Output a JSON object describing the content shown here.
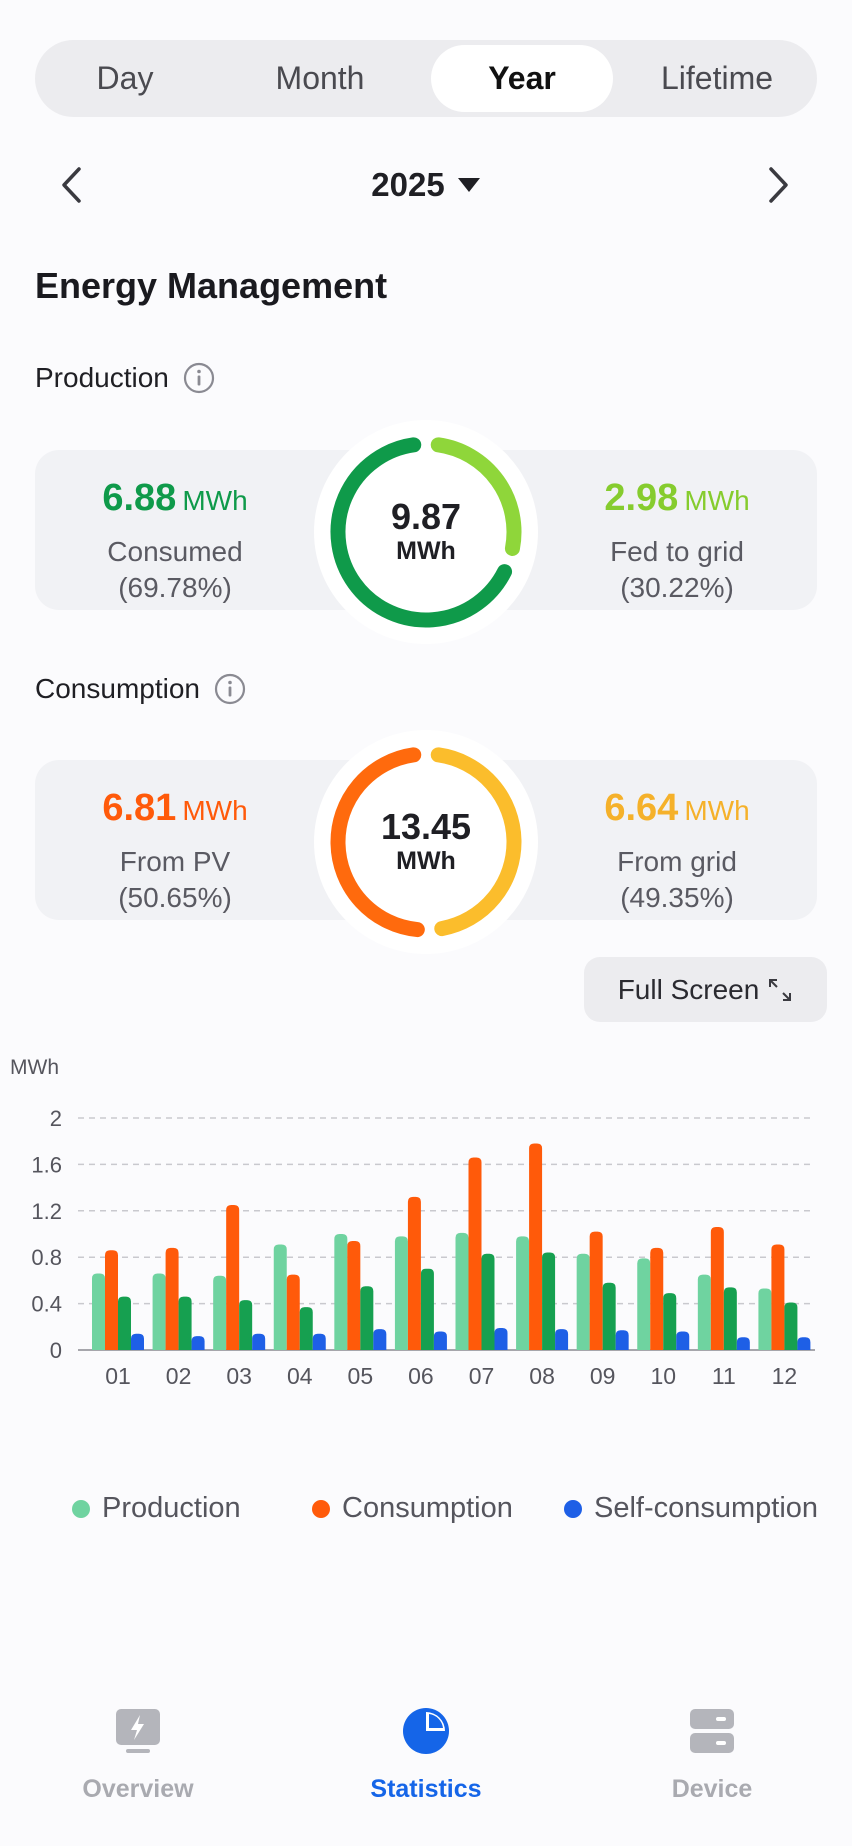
{
  "period_tabs": [
    {
      "label": "Day",
      "active": false
    },
    {
      "label": "Month",
      "active": false
    },
    {
      "label": "Year",
      "active": true
    },
    {
      "label": "Lifetime",
      "active": false
    }
  ],
  "year_nav": {
    "year": "2025",
    "prev_icon": "chevron-left-icon",
    "next_icon": "chevron-right-icon",
    "dropdown_icon": "caret-down-icon"
  },
  "title": "Energy Management",
  "production": {
    "label": "Production",
    "info_icon": "info-icon",
    "total": "9.87",
    "unit": "MWh",
    "left": {
      "value": "6.88",
      "unit": "MWh",
      "label": "Consumed",
      "pct": "(69.78%)",
      "fraction": 0.6978,
      "color": "#0f9a4a"
    },
    "right": {
      "value": "2.98",
      "unit": "MWh",
      "label": "Fed to grid",
      "pct": "(30.22%)",
      "fraction": 0.3022,
      "color": "#8fd63a"
    }
  },
  "consumption": {
    "label": "Consumption",
    "info_icon": "info-icon",
    "total": "13.45",
    "unit": "MWh",
    "left": {
      "value": "6.81",
      "unit": "MWh",
      "label": "From PV",
      "pct": "(50.65%)",
      "fraction": 0.5065,
      "color": "#ff6a0d"
    },
    "right": {
      "value": "6.64",
      "unit": "MWh",
      "label": "From grid",
      "pct": "(49.35%)",
      "fraction": 0.4935,
      "color": "#fbbd2c"
    }
  },
  "fullscreen": {
    "label": "Full Screen",
    "icon": "expand-icon"
  },
  "chart_data": {
    "type": "bar",
    "ylabel": "MWh",
    "ylim": [
      0,
      2
    ],
    "yticks": [
      "0",
      "0.4",
      "0.8",
      "1.2",
      "1.6",
      "2"
    ],
    "grid": true,
    "legend_position": "bottom",
    "categories": [
      "01",
      "02",
      "03",
      "04",
      "05",
      "06",
      "07",
      "08",
      "09",
      "10",
      "11",
      "12"
    ],
    "series": [
      {
        "name": "Production",
        "color": "#6fd3a0",
        "values": [
          0.66,
          0.66,
          0.64,
          0.91,
          1.0,
          0.98,
          1.01,
          0.98,
          0.83,
          0.79,
          0.65,
          0.53
        ]
      },
      {
        "name": "Consumption",
        "color": "#ff5a0a",
        "values": [
          0.86,
          0.88,
          1.25,
          0.65,
          0.94,
          1.32,
          1.66,
          1.78,
          1.02,
          0.88,
          1.06,
          0.91
        ]
      },
      {
        "name": "",
        "color": "#16a050",
        "values": [
          0.46,
          0.46,
          0.43,
          0.37,
          0.55,
          0.7,
          0.83,
          0.84,
          0.58,
          0.49,
          0.54,
          0.41
        ]
      },
      {
        "name": "Self-consumption",
        "color": "#1e5fe6",
        "values": [
          0.14,
          0.12,
          0.14,
          0.14,
          0.18,
          0.16,
          0.19,
          0.18,
          0.17,
          0.16,
          0.11,
          0.11
        ]
      }
    ]
  },
  "bottom_tabs": [
    {
      "label": "Overview",
      "icon": "monitor-bolt-icon",
      "active": false,
      "color": "#a9aab0"
    },
    {
      "label": "Statistics",
      "icon": "pie-chart-icon",
      "active": true,
      "color": "#1565e8"
    },
    {
      "label": "Device",
      "icon": "device-icon",
      "active": false,
      "color": "#a9aab0"
    }
  ]
}
